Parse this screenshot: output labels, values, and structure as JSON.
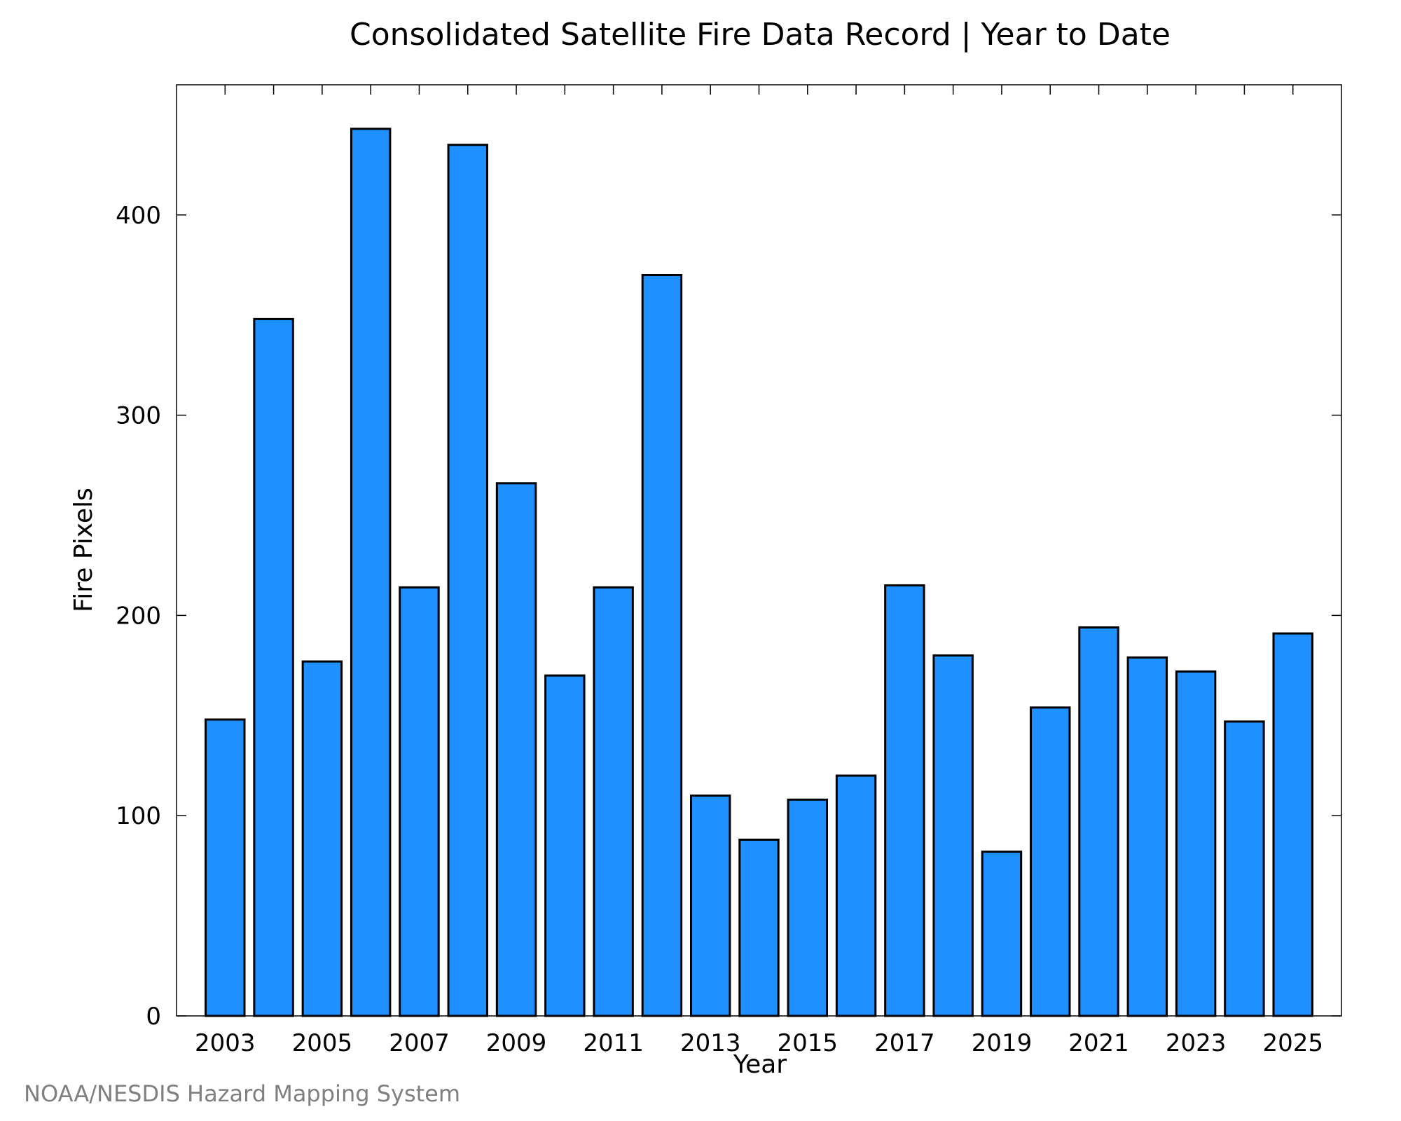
{
  "chart_data": {
    "type": "bar",
    "title": "Consolidated Satellite Fire Data Record | Year to Date",
    "xlabel": "Year",
    "ylabel": "Fire Pixels",
    "source": "NOAA/NESDIS Hazard Mapping System",
    "categories": [
      2003,
      2004,
      2005,
      2006,
      2007,
      2008,
      2009,
      2010,
      2011,
      2012,
      2013,
      2014,
      2015,
      2016,
      2017,
      2018,
      2019,
      2020,
      2021,
      2022,
      2023,
      2024,
      2025
    ],
    "values": [
      148,
      348,
      177,
      443,
      214,
      435,
      266,
      170,
      214,
      370,
      110,
      88,
      108,
      120,
      215,
      180,
      82,
      154,
      194,
      179,
      172,
      147,
      191
    ],
    "x_tick_labels": [
      "2003",
      "2005",
      "2007",
      "2009",
      "2011",
      "2013",
      "2015",
      "2017",
      "2019",
      "2021",
      "2023",
      "2025"
    ],
    "y_tick_labels": [
      "0",
      "100",
      "200",
      "300",
      "400"
    ],
    "y_ticks": [
      0,
      100,
      200,
      300,
      400
    ],
    "xlim": [
      2002,
      2026
    ],
    "ylim": [
      0,
      465
    ],
    "bar_color": "#1e90ff",
    "bar_edge_color": "#000000",
    "grid": false,
    "legend": "none"
  }
}
